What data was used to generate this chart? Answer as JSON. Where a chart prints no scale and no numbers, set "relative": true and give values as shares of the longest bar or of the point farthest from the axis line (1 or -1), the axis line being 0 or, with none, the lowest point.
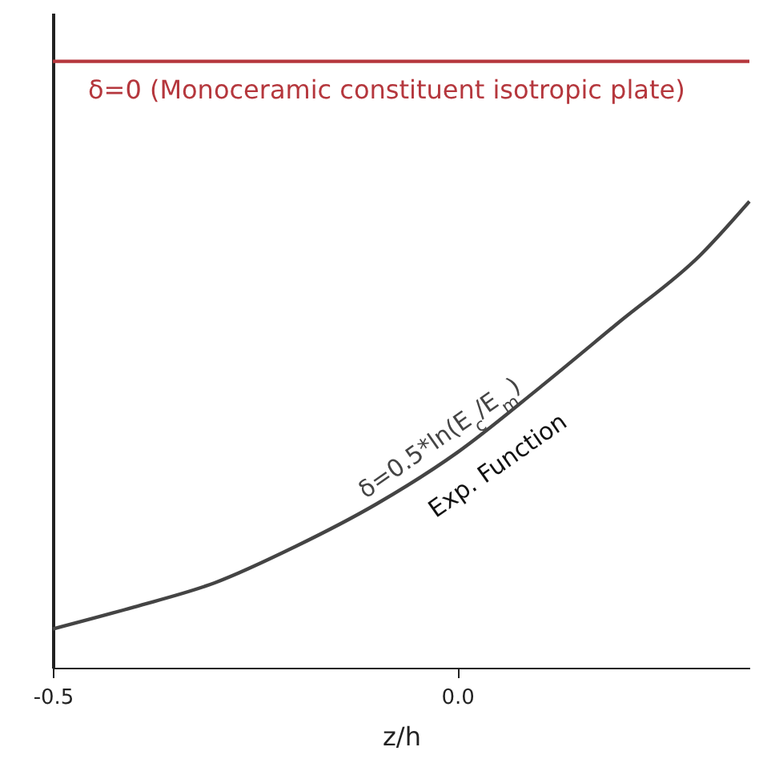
{
  "chart_data": {
    "type": "line",
    "relative": true,
    "xlabel": "z/h",
    "x": [
      -0.5,
      -0.4,
      -0.3,
      -0.2,
      -0.1,
      0,
      0.1,
      0.2,
      0.3,
      0.361
    ],
    "xlim": [
      -0.5,
      0.361
    ],
    "xticks": [
      {
        "value": -0.5,
        "label": "-0.5"
      },
      {
        "value": 0,
        "label": "0.0"
      }
    ],
    "series": [
      {
        "name": "δ=0 (Monoceramic constituent isotropic plate)",
        "color": "#b5373d",
        "values": [
          1,
          1,
          1,
          1,
          1,
          1,
          1,
          1,
          1,
          1
        ]
      },
      {
        "name": "δ=0.5*ln(E$_{c}$/E$_{m}$)",
        "color": "#444444",
        "values": [
          0.064,
          0.1,
          0.14,
          0.2,
          0.27,
          0.355,
          0.46,
          0.57,
          0.68,
          0.769
        ]
      }
    ],
    "annotations": [
      "Exp. Function"
    ]
  }
}
